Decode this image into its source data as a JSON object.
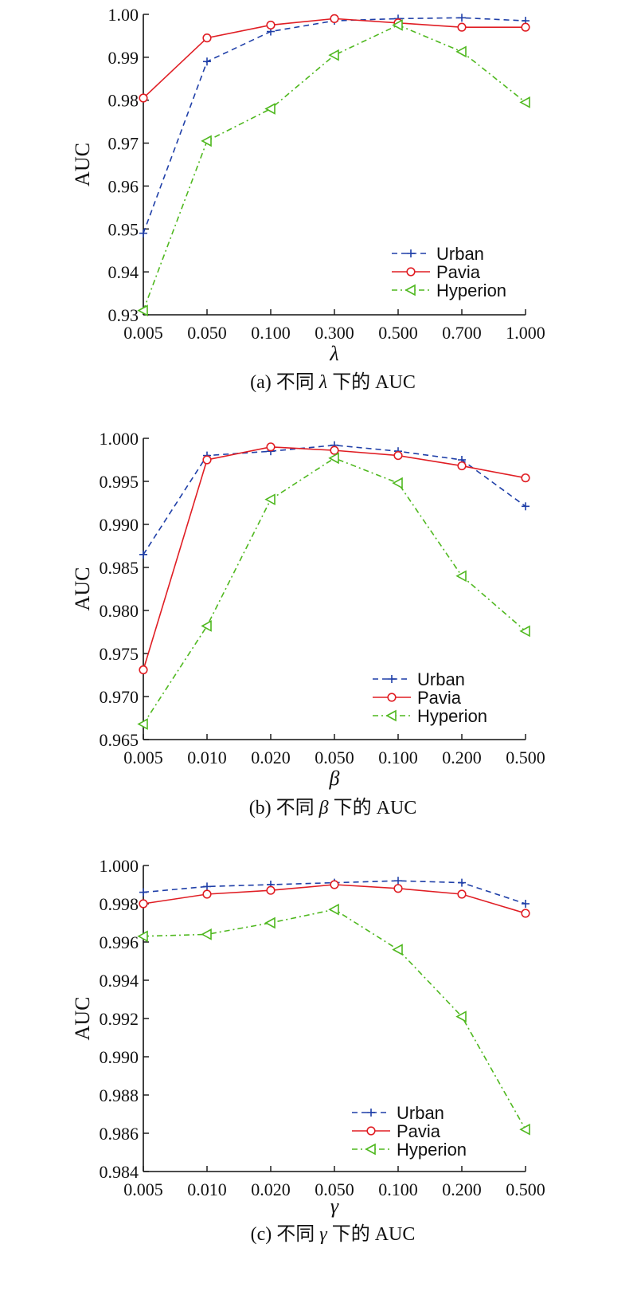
{
  "colors": {
    "Urban": "#1f3fa8",
    "Pavia": "#e01e24",
    "Hyperion": "#4fb81f"
  },
  "chart_data": [
    {
      "type": "line",
      "categories": [
        "0.005",
        "0.050",
        "0.100",
        "0.300",
        "0.500",
        "0.700",
        "1.000"
      ],
      "xlabel": "λ",
      "ylabel": "AUC",
      "ylim": [
        0.93,
        1.0
      ],
      "yticks": [
        "0.93",
        "0.94",
        "0.95",
        "0.96",
        "0.97",
        "0.98",
        "0.99",
        "1.00"
      ],
      "grid": false,
      "legend_position": "bottom-right",
      "caption_pre": "(a) 不同",
      "caption_sym": "λ",
      "caption_post": "下的 AUC",
      "series": [
        {
          "name": "Urban",
          "marker": "plus",
          "dash": "dashed",
          "values": [
            0.949,
            0.989,
            0.996,
            0.9985,
            0.999,
            0.9992,
            0.9985
          ]
        },
        {
          "name": "Pavia",
          "marker": "circle",
          "dash": "solid",
          "values": [
            0.9805,
            0.9945,
            0.9975,
            0.999,
            0.998,
            0.997,
            0.997
          ]
        },
        {
          "name": "Hyperion",
          "marker": "triangle-left",
          "dash": "dashdot",
          "values": [
            0.931,
            0.9705,
            0.978,
            0.9905,
            0.9975,
            0.9913,
            0.9795
          ]
        }
      ]
    },
    {
      "type": "line",
      "categories": [
        "0.005",
        "0.010",
        "0.020",
        "0.050",
        "0.100",
        "0.200",
        "0.500"
      ],
      "xlabel": "β",
      "ylabel": "AUC",
      "ylim": [
        0.965,
        1.0
      ],
      "yticks": [
        "0.965",
        "0.970",
        "0.975",
        "0.980",
        "0.985",
        "0.990",
        "0.995",
        "1.000"
      ],
      "grid": false,
      "legend_position": "bottom-right",
      "caption_pre": "(b) 不同",
      "caption_sym": "β",
      "caption_post": "下的 AUC",
      "series": [
        {
          "name": "Urban",
          "marker": "plus",
          "dash": "dashed",
          "values": [
            0.9865,
            0.998,
            0.9985,
            0.9992,
            0.9985,
            0.9975,
            0.9921
          ]
        },
        {
          "name": "Pavia",
          "marker": "circle",
          "dash": "solid",
          "values": [
            0.9731,
            0.9975,
            0.999,
            0.9986,
            0.998,
            0.9968,
            0.9954
          ]
        },
        {
          "name": "Hyperion",
          "marker": "triangle-left",
          "dash": "dashdot",
          "values": [
            0.9668,
            0.9782,
            0.9929,
            0.9977,
            0.9948,
            0.984,
            0.9776
          ]
        }
      ]
    },
    {
      "type": "line",
      "categories": [
        "0.005",
        "0.010",
        "0.020",
        "0.050",
        "0.100",
        "0.200",
        "0.500"
      ],
      "xlabel": "γ",
      "ylabel": "AUC",
      "ylim": [
        0.984,
        1.0
      ],
      "yticks": [
        "0.984",
        "0.986",
        "0.988",
        "0.990",
        "0.992",
        "0.994",
        "0.996",
        "0.998",
        "1.000"
      ],
      "grid": false,
      "legend_position": "bottom-left",
      "caption_pre": "(c) 不同",
      "caption_sym": "γ",
      "caption_post": "下的 AUC",
      "series": [
        {
          "name": "Urban",
          "marker": "plus",
          "dash": "dashed",
          "values": [
            0.9986,
            0.9989,
            0.999,
            0.9991,
            0.9992,
            0.9991,
            0.998
          ]
        },
        {
          "name": "Pavia",
          "marker": "circle",
          "dash": "solid",
          "values": [
            0.998,
            0.9985,
            0.9987,
            0.999,
            0.9988,
            0.9985,
            0.9975
          ]
        },
        {
          "name": "Hyperion",
          "marker": "triangle-left",
          "dash": "dashdot",
          "values": [
            0.9963,
            0.9964,
            0.997,
            0.9977,
            0.9956,
            0.9921,
            0.9862
          ]
        }
      ]
    }
  ]
}
